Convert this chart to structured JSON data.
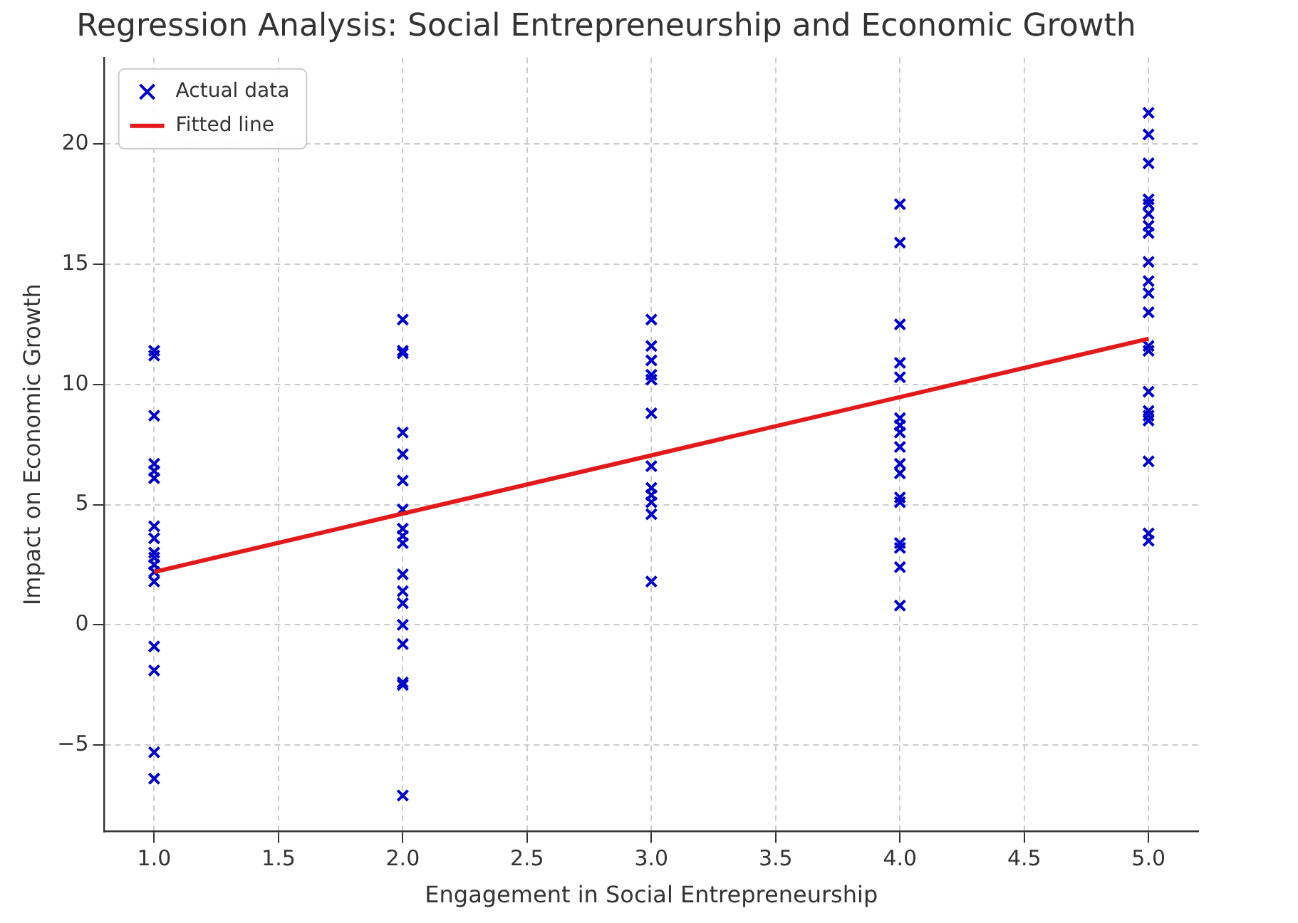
{
  "chart_data": {
    "type": "scatter",
    "title": "Regression Analysis: Social Entrepreneurship and Economic Growth",
    "xlabel": "Engagement in Social Entrepreneurship",
    "ylabel": "Impact on Economic Growth",
    "series": [
      {
        "name": "Actual data",
        "color": "#0000cc",
        "marker": "cross",
        "x": [
          1,
          1,
          1,
          1,
          1,
          1,
          1,
          1,
          1,
          1,
          1,
          1,
          1,
          1,
          1,
          1,
          1,
          2,
          2,
          2,
          2,
          2,
          2,
          2,
          2,
          2,
          2,
          2,
          2,
          2,
          2,
          2,
          2,
          2,
          2,
          3,
          3,
          3,
          3,
          3,
          3,
          3,
          3,
          3,
          3,
          3,
          3,
          4,
          4,
          4,
          4,
          4,
          4,
          4,
          4,
          4,
          4,
          4,
          4,
          4,
          4,
          4,
          4,
          4,
          5,
          5,
          5,
          5,
          5,
          5,
          5,
          5,
          5,
          5,
          5,
          5,
          5,
          5,
          5,
          5,
          5,
          5,
          5,
          5,
          5
        ],
        "values": [
          11.4,
          11.2,
          8.7,
          6.7,
          6.4,
          6.1,
          4.1,
          3.6,
          3.0,
          2.8,
          2.5,
          2.2,
          1.8,
          -0.9,
          -1.9,
          -5.3,
          -6.4,
          12.7,
          11.4,
          11.3,
          8.0,
          7.1,
          6.0,
          4.8,
          4.0,
          3.7,
          3.4,
          2.1,
          1.4,
          0.9,
          0.0,
          -0.8,
          -2.4,
          -2.5,
          -7.1,
          12.7,
          11.6,
          11.0,
          10.4,
          10.2,
          8.8,
          6.6,
          5.7,
          5.4,
          5.1,
          4.6,
          1.8,
          17.5,
          15.9,
          12.5,
          10.9,
          10.3,
          8.6,
          8.3,
          8.0,
          7.4,
          6.7,
          6.3,
          5.3,
          5.1,
          3.4,
          3.2,
          2.4,
          0.8,
          21.3,
          20.4,
          19.2,
          17.7,
          17.5,
          17.1,
          16.6,
          16.3,
          15.1,
          14.3,
          13.8,
          13.0,
          11.6,
          11.4,
          9.7,
          8.9,
          8.7,
          8.5,
          6.8,
          3.8,
          3.5
        ]
      },
      {
        "name": "Fitted line",
        "type": "line",
        "color": "#e31a1c",
        "x": [
          1,
          5
        ],
        "values": [
          2.2,
          11.9
        ]
      }
    ],
    "xlim": [
      0.8,
      5.2
    ],
    "xticks": [
      {
        "value": 1,
        "label": "1.0"
      },
      {
        "value": 1.5,
        "label": "1.5"
      },
      {
        "value": 2,
        "label": "2.0"
      },
      {
        "value": 2.5,
        "label": "2.5"
      },
      {
        "value": 3,
        "label": "3.0"
      },
      {
        "value": 3.5,
        "label": "3.5"
      },
      {
        "value": 4,
        "label": "4.0"
      },
      {
        "value": 4.5,
        "label": "4.5"
      },
      {
        "value": 5,
        "label": "5.0"
      }
    ],
    "ylim": [
      -8.6,
      23.6
    ],
    "yticks": [
      -5,
      0,
      5,
      10,
      15,
      20
    ],
    "grid": true,
    "legend": "top left"
  }
}
